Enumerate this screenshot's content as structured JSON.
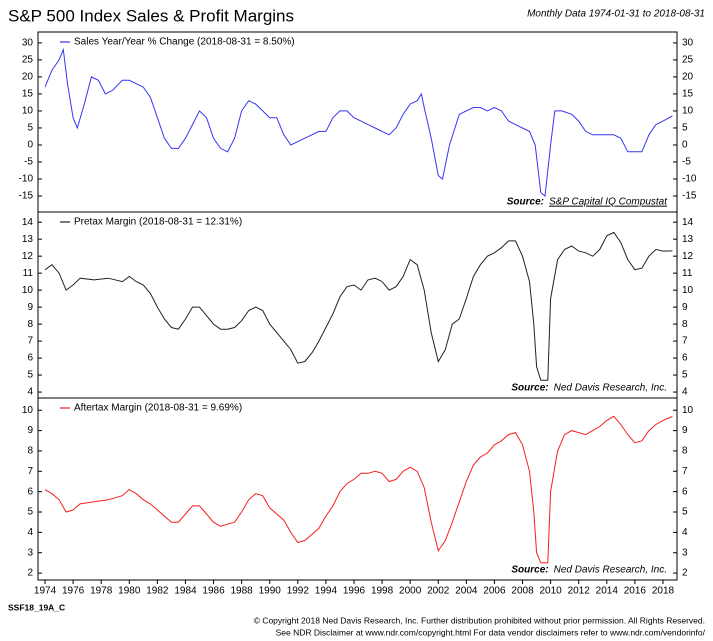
{
  "header": {
    "title": "S&P 500 Index Sales & Profit Margins",
    "subtitle": "Monthly Data 1974-01-31 to 2018-08-31"
  },
  "footer": {
    "code": "SSF18_19A_C",
    "copyright": "© Copyright 2018 Ned Davis Research, Inc. Further distribution prohibited without prior permission. All Rights Reserved.",
    "disclaimer": "See NDR Disclaimer at www.ndr.com/copyright.html  For data vendor disclaimers refer to www.ndr.com/vendorinfo/"
  },
  "chart_data": [
    {
      "type": "line",
      "source_label": "Source:",
      "source": "S&P Capital IQ Compustat",
      "x": [
        1974,
        1974.5,
        1975,
        1975.3,
        1975.6,
        1976,
        1976.3,
        1976.8,
        1977.3,
        1977.8,
        1978.3,
        1978.8,
        1979.5,
        1980,
        1980.5,
        1981,
        1981.5,
        1982,
        1982.5,
        1983,
        1983.5,
        1984,
        1984.5,
        1985,
        1985.5,
        1986,
        1986.5,
        1987,
        1987.5,
        1988,
        1988.5,
        1989,
        1989.5,
        1990,
        1990.5,
        1991,
        1991.5,
        1992,
        1992.5,
        1993,
        1993.5,
        1994,
        1994.5,
        1995,
        1995.5,
        1996,
        1996.5,
        1997,
        1997.5,
        1998,
        1998.5,
        1999,
        1999.5,
        2000,
        2000.5,
        2000.8,
        2001,
        2001.5,
        2002,
        2002.3,
        2002.8,
        2003.5,
        2004,
        2004.5,
        2005,
        2005.5,
        2006,
        2006.5,
        2007,
        2007.5,
        2008,
        2008.5,
        2008.9,
        2009.3,
        2009.6,
        2010,
        2010.3,
        2010.8,
        2011.5,
        2012,
        2012.5,
        2013,
        2013.5,
        2014,
        2014.5,
        2015,
        2015.5,
        2016,
        2016.5,
        2017,
        2017.5,
        2018,
        2018.67
      ],
      "series": [
        {
          "name": "Sales Year/Year % Change (2018-08-31 = 8.50%)",
          "color": "#3535f5",
          "values": [
            17,
            22,
            25,
            28,
            18,
            8,
            5,
            12,
            20,
            19,
            15,
            16,
            19,
            19,
            18,
            17,
            14,
            8,
            2,
            -1,
            -1,
            2,
            6,
            10,
            8,
            2,
            -1,
            -2,
            2,
            10,
            13,
            12,
            10,
            8,
            8,
            3,
            0,
            1,
            2,
            3,
            4,
            4,
            8,
            10,
            10,
            8,
            7,
            6,
            5,
            4,
            3,
            5,
            9,
            12,
            13,
            15,
            11,
            2,
            -9,
            -10,
            0,
            9,
            10,
            11,
            11,
            10,
            11,
            10,
            7,
            6,
            5,
            4,
            0,
            -14,
            -15,
            0,
            10,
            10,
            9,
            7,
            4,
            3,
            3,
            3,
            3,
            2,
            -2,
            -2,
            -2,
            3,
            6,
            7,
            8.5
          ]
        }
      ],
      "xlim": [
        1973.5,
        2019
      ],
      "ylim": [
        -19.7,
        33.2
      ],
      "yticks": [
        -15,
        -10,
        -5,
        0,
        5,
        10,
        15,
        20,
        25,
        30
      ]
    },
    {
      "type": "line",
      "source_label": "Source:",
      "source": "Ned Davis Research, Inc.",
      "x": [
        1974,
        1974.5,
        1975,
        1975.5,
        1976,
        1976.5,
        1977.5,
        1978.5,
        1979.5,
        1980,
        1980.5,
        1981,
        1981.5,
        1982,
        1982.5,
        1983,
        1983.5,
        1984,
        1984.5,
        1985,
        1985.5,
        1986,
        1986.5,
        1987,
        1987.5,
        1988,
        1988.5,
        1989,
        1989.5,
        1990,
        1990.5,
        1991,
        1991.5,
        1992,
        1992.5,
        1993,
        1993.5,
        1994,
        1994.5,
        1995,
        1995.5,
        1996,
        1996.5,
        1997,
        1997.5,
        1998,
        1998.5,
        1999,
        1999.5,
        2000,
        2000.5,
        2001,
        2001.5,
        2002,
        2002.5,
        2003,
        2003.5,
        2004,
        2004.5,
        2005,
        2005.5,
        2006,
        2006.5,
        2007,
        2007.5,
        2008,
        2008.5,
        2008.8,
        2009,
        2009.3,
        2009.8,
        2010,
        2010.5,
        2011,
        2011.5,
        2012,
        2012.5,
        2013,
        2013.5,
        2014,
        2014.5,
        2015,
        2015.5,
        2016,
        2016.5,
        2017,
        2017.5,
        2018,
        2018.67
      ],
      "series": [
        {
          "name": "Pretax Margin (2018-08-31 = 12.31%)",
          "color": "#222222",
          "values": [
            11.2,
            11.5,
            11,
            10,
            10.3,
            10.7,
            10.6,
            10.7,
            10.5,
            10.8,
            10.5,
            10.3,
            9.8,
            9,
            8.3,
            7.8,
            7.7,
            8.3,
            9.0,
            9.0,
            8.5,
            8.0,
            7.7,
            7.7,
            7.8,
            8.2,
            8.8,
            9.0,
            8.8,
            8.0,
            7.5,
            7.0,
            6.5,
            5.7,
            5.8,
            6.3,
            7.0,
            7.8,
            8.6,
            9.6,
            10.2,
            10.3,
            10.0,
            10.6,
            10.7,
            10.5,
            10.0,
            10.2,
            10.8,
            11.8,
            11.5,
            10,
            7.5,
            5.8,
            6.5,
            8.0,
            8.3,
            9.5,
            10.8,
            11.5,
            12.0,
            12.2,
            12.5,
            12.9,
            12.9,
            12.0,
            10.5,
            8,
            5.5,
            4.7,
            4.7,
            9.5,
            11.8,
            12.4,
            12.6,
            12.3,
            12.2,
            12.0,
            12.4,
            13.2,
            13.4,
            12.8,
            11.8,
            11.2,
            11.3,
            12.0,
            12.4,
            12.3,
            12.31
          ]
        }
      ],
      "xlim": [
        1973.5,
        2019
      ],
      "ylim": [
        3.65,
        14.6
      ],
      "yticks": [
        4,
        5,
        6,
        7,
        8,
        9,
        10,
        11,
        12,
        13,
        14
      ]
    },
    {
      "type": "line",
      "source_label": "Source:",
      "source": "Ned Davis Research, Inc.",
      "x": [
        1974,
        1974.5,
        1975,
        1975.5,
        1976,
        1976.5,
        1977.5,
        1978.5,
        1979.5,
        1980,
        1980.5,
        1981,
        1981.5,
        1982,
        1982.5,
        1983,
        1983.5,
        1984,
        1984.5,
        1985,
        1985.5,
        1986,
        1986.5,
        1987,
        1987.5,
        1988,
        1988.5,
        1989,
        1989.5,
        1990,
        1990.5,
        1991,
        1991.5,
        1992,
        1992.5,
        1993,
        1993.5,
        1994,
        1994.5,
        1995,
        1995.5,
        1996,
        1996.5,
        1997,
        1997.5,
        1998,
        1998.5,
        1999,
        1999.5,
        2000,
        2000.5,
        2001,
        2001.5,
        2002,
        2002.5,
        2003,
        2003.5,
        2004,
        2004.5,
        2005,
        2005.5,
        2006,
        2006.5,
        2007,
        2007.5,
        2008,
        2008.5,
        2008.8,
        2009,
        2009.3,
        2009.8,
        2010,
        2010.5,
        2011,
        2011.5,
        2012,
        2012.5,
        2013,
        2013.5,
        2014,
        2014.5,
        2015,
        2015.5,
        2016,
        2016.5,
        2017,
        2017.5,
        2018,
        2018.67
      ],
      "series": [
        {
          "name": "Aftertax Margin (2018-08-31 = 9.69%)",
          "color": "#f52020",
          "values": [
            6.1,
            5.9,
            5.6,
            5.0,
            5.1,
            5.4,
            5.5,
            5.6,
            5.8,
            6.1,
            5.9,
            5.6,
            5.4,
            5.1,
            4.8,
            4.5,
            4.5,
            4.9,
            5.3,
            5.3,
            4.9,
            4.5,
            4.3,
            4.4,
            4.5,
            5.0,
            5.6,
            5.9,
            5.8,
            5.2,
            4.9,
            4.6,
            4.0,
            3.5,
            3.6,
            3.9,
            4.2,
            4.8,
            5.3,
            6.0,
            6.4,
            6.6,
            6.9,
            6.9,
            7.0,
            6.9,
            6.5,
            6.6,
            7.0,
            7.2,
            7.0,
            6.2,
            4.5,
            3.1,
            3.6,
            4.5,
            5.5,
            6.5,
            7.3,
            7.7,
            7.9,
            8.3,
            8.5,
            8.8,
            8.9,
            8.3,
            7.0,
            5.0,
            3.0,
            2.5,
            2.5,
            6.0,
            8.0,
            8.8,
            9.0,
            8.9,
            8.8,
            9.0,
            9.2,
            9.5,
            9.7,
            9.3,
            8.8,
            8.4,
            8.5,
            9.0,
            9.3,
            9.5,
            9.69
          ]
        }
      ],
      "xlim": [
        1973.5,
        2019
      ],
      "ylim": [
        1.66,
        10.6
      ],
      "yticks": [
        2,
        3,
        4,
        5,
        6,
        7,
        8,
        9,
        10
      ],
      "xticks": [
        1974,
        1976,
        1978,
        1980,
        1982,
        1984,
        1986,
        1988,
        1990,
        1992,
        1994,
        1996,
        1998,
        2000,
        2002,
        2004,
        2006,
        2008,
        2010,
        2012,
        2014,
        2016,
        2018
      ]
    }
  ]
}
